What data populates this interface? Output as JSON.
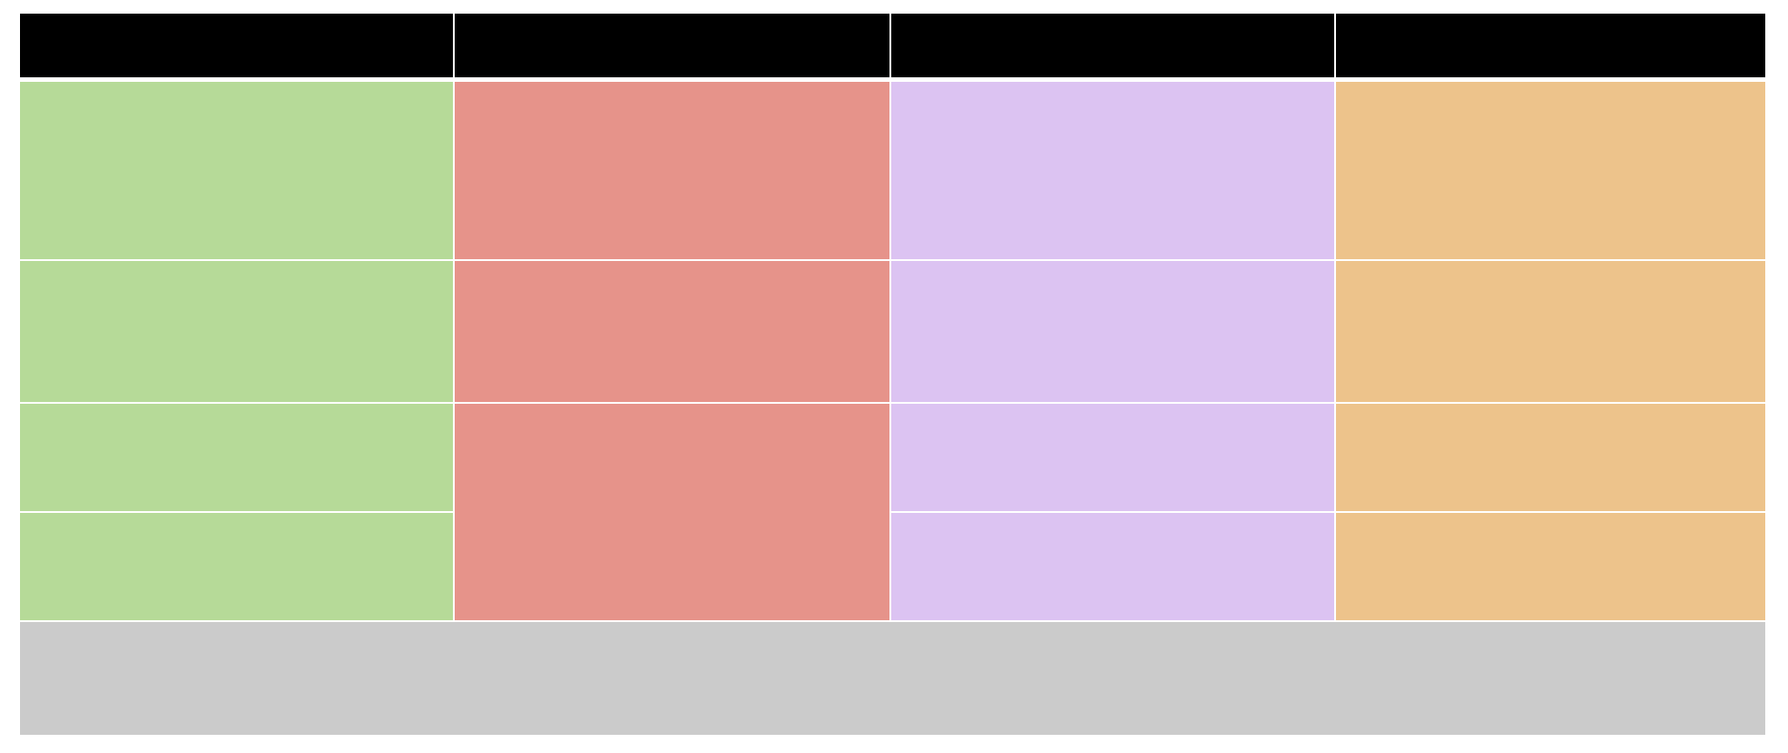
{
  "colors": {
    "header": "#000000",
    "column_1": "#b6da98",
    "column_2": "#e6938a",
    "column_3": "#dcc3f2",
    "column_4": "#edc38b",
    "footer": "#cbcbcb",
    "divider": "#ffffff"
  },
  "header": {
    "cells": [
      "",
      "",
      "",
      ""
    ]
  },
  "rows": [
    {
      "cells": [
        "",
        "",
        "",
        ""
      ]
    },
    {
      "cells": [
        "",
        "",
        "",
        ""
      ]
    },
    {
      "cells": [
        "",
        "",
        "",
        ""
      ]
    },
    {
      "cells": [
        "",
        "",
        ""
      ]
    }
  ],
  "footer": {
    "text": ""
  }
}
